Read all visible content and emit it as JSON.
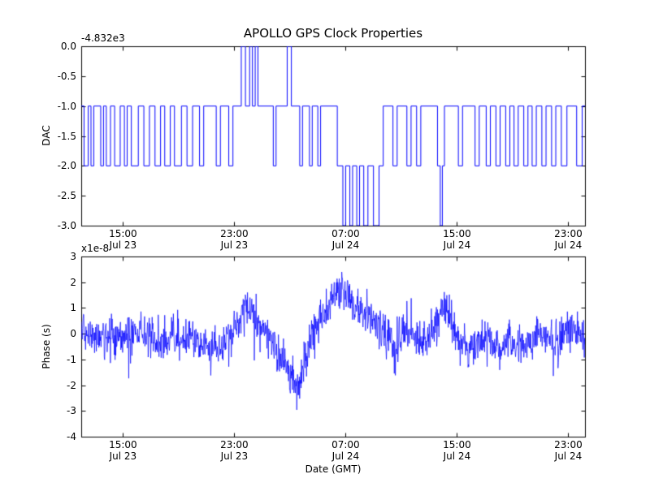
{
  "title": "APOLLO GPS Clock Properties",
  "xlabel": "Date (GMT)",
  "line_color": "#0000ff",
  "chart_data": [
    {
      "type": "step-line",
      "name": "dac",
      "ylabel": "DAC",
      "offset_label": "-4.832e3",
      "y_offset_value": -4832,
      "ylim": [
        -3.0,
        0.0
      ],
      "yticks": [
        "0.0",
        "-0.5",
        "-1.0",
        "-1.5",
        "-2.0",
        "-2.5",
        "-3.0"
      ],
      "x_hours_range": [
        0,
        36.2
      ],
      "xtick_hours": [
        3,
        11,
        19,
        27,
        35
      ],
      "xtick_labels": [
        [
          "15:00",
          "Jul 23"
        ],
        [
          "23:00",
          "Jul 23"
        ],
        [
          "07:00",
          "Jul 24"
        ],
        [
          "15:00",
          "Jul 24"
        ],
        [
          "23:00",
          "Jul 24"
        ]
      ],
      "steps": [
        [
          0.0,
          -1
        ],
        [
          0.2,
          -2
        ],
        [
          0.5,
          -1
        ],
        [
          0.7,
          -2
        ],
        [
          0.9,
          -1
        ],
        [
          1.4,
          -2
        ],
        [
          1.6,
          -1
        ],
        [
          1.8,
          -2
        ],
        [
          2.1,
          -1
        ],
        [
          2.4,
          -2
        ],
        [
          2.8,
          -1
        ],
        [
          3.1,
          -2
        ],
        [
          3.3,
          -1
        ],
        [
          3.6,
          -2
        ],
        [
          4.1,
          -1
        ],
        [
          4.5,
          -2
        ],
        [
          4.9,
          -1
        ],
        [
          5.3,
          -2
        ],
        [
          5.7,
          -1
        ],
        [
          6.0,
          -2
        ],
        [
          6.4,
          -1
        ],
        [
          6.7,
          -2
        ],
        [
          7.2,
          -1
        ],
        [
          7.6,
          -2
        ],
        [
          8.0,
          -1
        ],
        [
          8.5,
          -2
        ],
        [
          8.8,
          -1
        ],
        [
          9.7,
          -2
        ],
        [
          10.0,
          -1
        ],
        [
          10.6,
          -2
        ],
        [
          10.9,
          -1
        ],
        [
          11.5,
          0
        ],
        [
          11.8,
          -1
        ],
        [
          12.1,
          0
        ],
        [
          12.3,
          -1
        ],
        [
          12.5,
          0
        ],
        [
          12.7,
          -1
        ],
        [
          13.8,
          -2
        ],
        [
          14.0,
          -1
        ],
        [
          14.8,
          0
        ],
        [
          15.1,
          -1
        ],
        [
          15.7,
          -2
        ],
        [
          15.9,
          -1
        ],
        [
          16.4,
          -2
        ],
        [
          16.6,
          -1
        ],
        [
          17.0,
          -2
        ],
        [
          17.2,
          -1
        ],
        [
          18.4,
          -2
        ],
        [
          18.8,
          -3
        ],
        [
          19.0,
          -2
        ],
        [
          19.3,
          -3
        ],
        [
          19.5,
          -2
        ],
        [
          19.8,
          -3
        ],
        [
          20.0,
          -2
        ],
        [
          20.3,
          -3
        ],
        [
          20.6,
          -2
        ],
        [
          21.0,
          -3
        ],
        [
          21.4,
          -2
        ],
        [
          21.7,
          -1
        ],
        [
          22.4,
          -2
        ],
        [
          22.7,
          -1
        ],
        [
          23.4,
          -2
        ],
        [
          23.7,
          -1
        ],
        [
          24.1,
          -2
        ],
        [
          24.4,
          -1
        ],
        [
          25.6,
          -2
        ],
        [
          25.8,
          -3
        ],
        [
          25.95,
          -2
        ],
        [
          26.1,
          -1
        ],
        [
          27.1,
          -2
        ],
        [
          27.4,
          -1
        ],
        [
          28.3,
          -2
        ],
        [
          28.6,
          -1
        ],
        [
          29.1,
          -2
        ],
        [
          29.4,
          -1
        ],
        [
          29.8,
          -2
        ],
        [
          30.1,
          -1
        ],
        [
          30.5,
          -2
        ],
        [
          30.8,
          -1
        ],
        [
          31.1,
          -2
        ],
        [
          31.4,
          -1
        ],
        [
          31.8,
          -2
        ],
        [
          32.1,
          -1
        ],
        [
          32.4,
          -2
        ],
        [
          32.7,
          -1
        ],
        [
          33.1,
          -2
        ],
        [
          33.4,
          -1
        ],
        [
          33.8,
          -2
        ],
        [
          34.1,
          -1
        ],
        [
          34.5,
          -2
        ],
        [
          34.9,
          -1
        ],
        [
          35.6,
          -2
        ],
        [
          36.0,
          -1
        ]
      ]
    },
    {
      "type": "line",
      "name": "phase",
      "ylabel": "Phase (s)",
      "offset_label": "x1e-8",
      "scale_factor": 1e-08,
      "ylim": [
        -4,
        3
      ],
      "yticks": [
        "3",
        "2",
        "1",
        "0",
        "-1",
        "-2",
        "-3",
        "-4"
      ],
      "x_hours_range": [
        0,
        36.2
      ],
      "xtick_hours": [
        3,
        11,
        19,
        27,
        35
      ],
      "xtick_labels": [
        [
          "15:00",
          "Jul 23"
        ],
        [
          "23:00",
          "Jul 23"
        ],
        [
          "07:00",
          "Jul 24"
        ],
        [
          "15:00",
          "Jul 24"
        ],
        [
          "23:00",
          "Jul 24"
        ]
      ],
      "envelope": [
        [
          0,
          0.0,
          0.8
        ],
        [
          2,
          -0.2,
          0.8
        ],
        [
          4,
          0.1,
          0.7
        ],
        [
          6,
          -0.3,
          0.8
        ],
        [
          8,
          -0.2,
          0.7
        ],
        [
          10,
          -0.5,
          0.7
        ],
        [
          11,
          0.2,
          0.8
        ],
        [
          12,
          1.1,
          0.8
        ],
        [
          13,
          0.3,
          0.8
        ],
        [
          14,
          -0.6,
          0.7
        ],
        [
          15,
          -1.3,
          0.9
        ],
        [
          15.5,
          -2.2,
          0.8
        ],
        [
          16,
          -1.0,
          0.8
        ],
        [
          17,
          0.6,
          0.9
        ],
        [
          18,
          1.4,
          0.8
        ],
        [
          18.8,
          1.7,
          0.8
        ],
        [
          19.5,
          1.2,
          0.9
        ],
        [
          20.5,
          0.8,
          0.9
        ],
        [
          21.5,
          0.2,
          0.9
        ],
        [
          22.5,
          -0.6,
          0.8
        ],
        [
          23.5,
          0.1,
          0.9
        ],
        [
          24.5,
          -0.4,
          0.7
        ],
        [
          25.5,
          0.3,
          0.8
        ],
        [
          26.3,
          1.1,
          0.9
        ],
        [
          27,
          -0.2,
          0.8
        ],
        [
          28,
          -0.6,
          0.7
        ],
        [
          29,
          -0.2,
          0.7
        ],
        [
          30,
          -0.5,
          0.7
        ],
        [
          31,
          -0.3,
          0.8
        ],
        [
          32,
          -0.6,
          0.7
        ],
        [
          33,
          0.0,
          0.8
        ],
        [
          34,
          -0.4,
          0.9
        ],
        [
          35,
          0.2,
          0.8
        ],
        [
          36.2,
          -0.1,
          0.7
        ]
      ],
      "noise_seed": 20240723,
      "n_points": 1400
    }
  ]
}
